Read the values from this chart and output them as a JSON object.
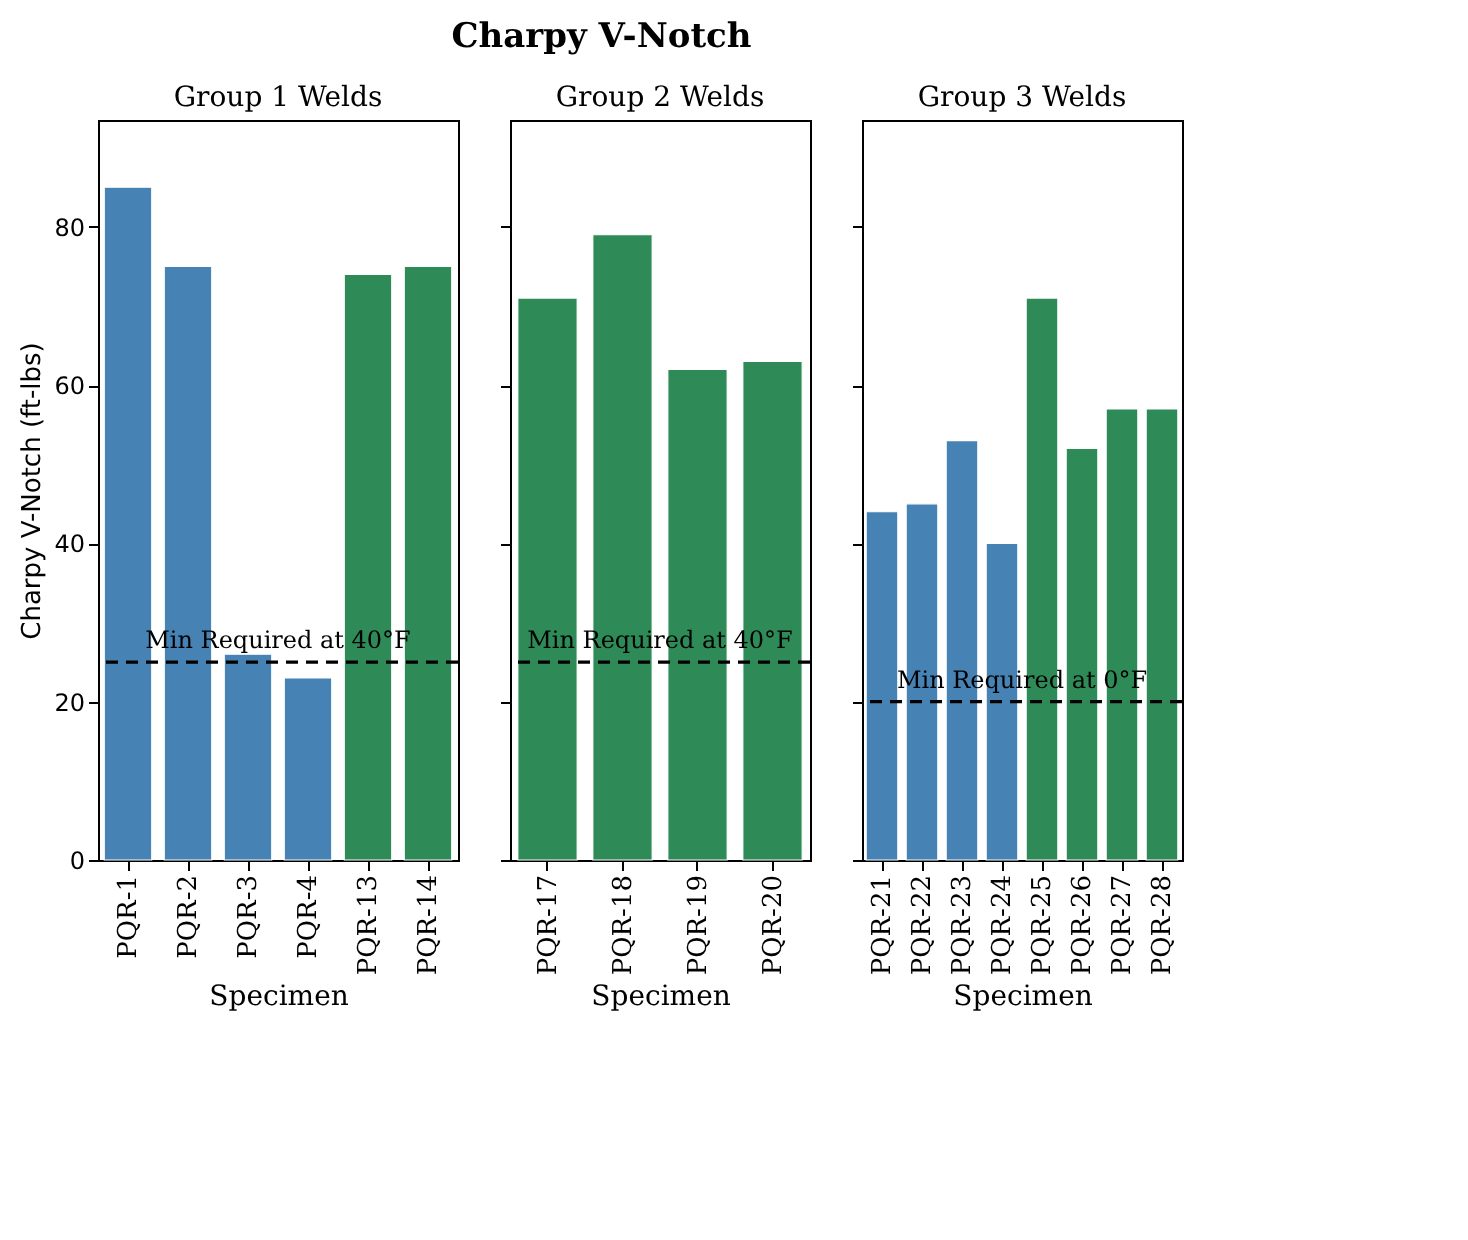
{
  "chart_data": [
    {
      "type": "bar",
      "title": "Group 1 Welds",
      "annotations": [
        "Charpy V-Notch"
      ],
      "xlabel": "Specimen",
      "ylabel": "Charpy V-Notch (ft-lbs)",
      "categories": [
        "PQR-1",
        "PQR-2",
        "PQR-3",
        "PQR-4",
        "PQR-13",
        "PQR-14"
      ],
      "values": [
        85,
        75,
        26,
        23,
        74,
        75
      ],
      "colors": [
        "#4682b4",
        "#4682b4",
        "#4682b4",
        "#4682b4",
        "#2e8b57",
        "#2e8b57"
      ],
      "ylim": [
        0,
        93.5
      ],
      "yticks": [
        0,
        20,
        40,
        60,
        80
      ],
      "grid": false,
      "ref_lines": [
        {
          "axis": "y",
          "value": 25,
          "label": "Min Required at 40°F",
          "color": "#000000",
          "line_style": "dashed"
        }
      ]
    },
    {
      "type": "bar",
      "title": "Group 2 Welds",
      "xlabel": "Specimen",
      "categories": [
        "PQR-17",
        "PQR-18",
        "PQR-19",
        "PQR-20"
      ],
      "values": [
        71,
        79,
        62,
        63
      ],
      "colors": [
        "#2e8b57",
        "#2e8b57",
        "#2e8b57",
        "#2e8b57"
      ],
      "ylim": [
        0,
        93.5
      ],
      "yticks": [
        0,
        20,
        40,
        60,
        80
      ],
      "grid": false,
      "tick_labels": "x",
      "ref_lines": [
        {
          "axis": "y",
          "value": 25,
          "label": "Min Required at 40°F",
          "color": "#000000",
          "line_style": "dashed"
        }
      ]
    },
    {
      "type": "bar",
      "title": "Group 3 Welds",
      "xlabel": "Specimen",
      "categories": [
        "PQR-21",
        "PQR-22",
        "PQR-23",
        "PQR-24",
        "PQR-25",
        "PQR-26",
        "PQR-27",
        "PQR-28"
      ],
      "values": [
        44,
        45,
        53,
        40,
        71,
        52,
        57,
        57
      ],
      "colors": [
        "#4682b4",
        "#4682b4",
        "#4682b4",
        "#4682b4",
        "#2e8b57",
        "#2e8b57",
        "#2e8b57",
        "#2e8b57"
      ],
      "ylim": [
        0,
        93.5
      ],
      "yticks": [
        0,
        20,
        40,
        60,
        80
      ],
      "grid": false,
      "tick_labels": "x",
      "ref_lines": [
        {
          "axis": "y",
          "value": 20,
          "label": "Min Required at 0°F",
          "color": "#000000",
          "line_style": "dashed"
        }
      ]
    }
  ]
}
